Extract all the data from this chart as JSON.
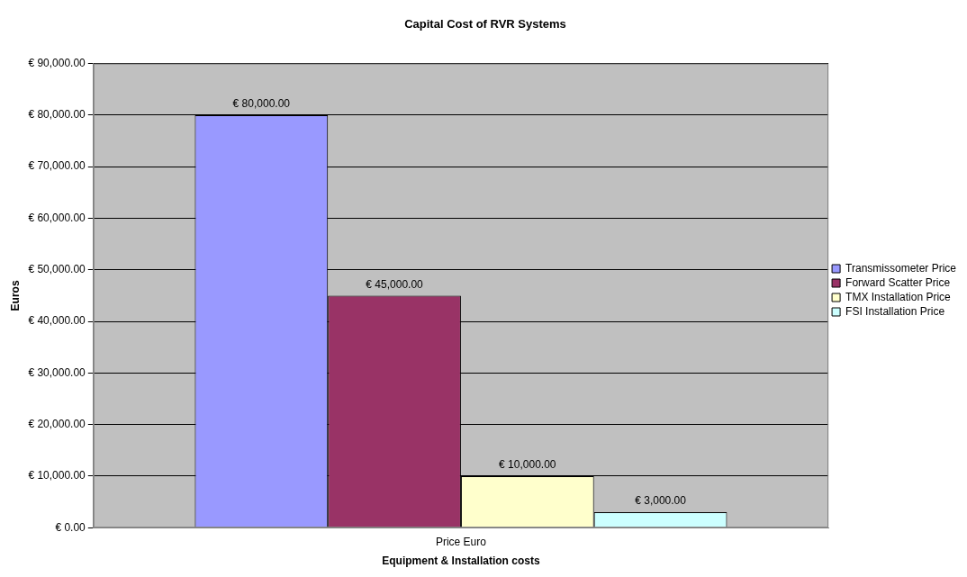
{
  "chart_data": {
    "type": "bar",
    "title": "Capital Cost of RVR Systems",
    "xlabel": "Equipment & Installation costs",
    "ylabel": "Euros",
    "categories": [
      "Price Euro"
    ],
    "series": [
      {
        "name": "Transmissometer Price",
        "color": "#9999ff",
        "values": [
          80000
        ],
        "value_labels": [
          "€ 80,000.00"
        ]
      },
      {
        "name": "Forward Scatter Price",
        "color": "#993366",
        "values": [
          45000
        ],
        "value_labels": [
          "€ 45,000.00"
        ]
      },
      {
        "name": "TMX Installation Price",
        "color": "#ffffcc",
        "values": [
          10000
        ],
        "value_labels": [
          "€ 10,000.00"
        ]
      },
      {
        "name": "FSI Installation Price",
        "color": "#ccffff",
        "values": [
          3000
        ],
        "value_labels": [
          "€ 3,000.00"
        ]
      }
    ],
    "ylim": [
      0,
      90000
    ],
    "yticks": [
      {
        "value": 0,
        "label": "€ 0.00"
      },
      {
        "value": 10000,
        "label": "€ 10,000.00"
      },
      {
        "value": 20000,
        "label": "€ 20,000.00"
      },
      {
        "value": 30000,
        "label": "€ 30,000.00"
      },
      {
        "value": 40000,
        "label": "€ 40,000.00"
      },
      {
        "value": 50000,
        "label": "€ 50,000.00"
      },
      {
        "value": 60000,
        "label": "€ 60,000.00"
      },
      {
        "value": 70000,
        "label": "€ 70,000.00"
      },
      {
        "value": 80000,
        "label": "€ 80,000.00"
      },
      {
        "value": 90000,
        "label": "€ 90,000.00"
      }
    ],
    "grid": "y",
    "legend": "right"
  }
}
